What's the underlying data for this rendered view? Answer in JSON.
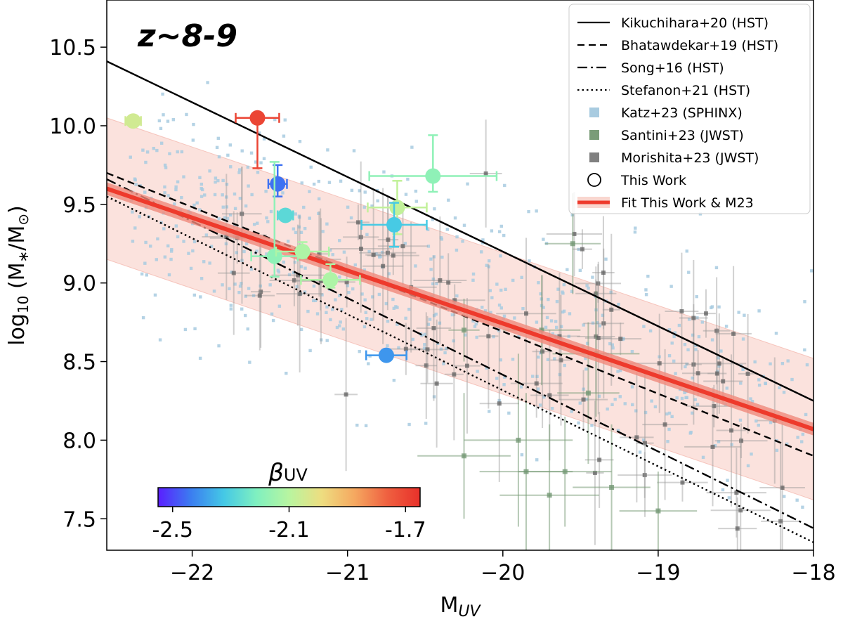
{
  "chart_data": {
    "type": "scatter",
    "annotation": "z~8-9",
    "xlabel_main": "M",
    "xlabel_sub": "UV",
    "ylabel_pre": "log",
    "ylabel_sub": "10",
    "ylabel_post": " (M",
    "ylabel_star": "∗",
    "ylabel_mid": "/M",
    "ylabel_sun": "⊙",
    "ylabel_end": ")",
    "xlim": [
      -22.55,
      -18.0
    ],
    "ylim": [
      7.3,
      10.8
    ],
    "xticks": [
      -22,
      -21,
      -20,
      -19,
      -18
    ],
    "xtick_labels": [
      "−22",
      "−21",
      "−20",
      "−19",
      "−18"
    ],
    "yticks": [
      7.5,
      8.0,
      8.5,
      9.0,
      9.5,
      10.0,
      10.5
    ],
    "ytick_labels": [
      "7.5",
      "8.0",
      "8.5",
      "9.0",
      "9.5",
      "10.0",
      "10.5"
    ],
    "colorbar": {
      "label_main": "β",
      "label_sub": "UV",
      "range": [
        -2.55,
        -1.65
      ],
      "ticks": [
        -2.5,
        -2.1,
        -1.7
      ],
      "tick_labels": [
        "-2.5",
        "-2.1",
        "-1.7"
      ],
      "colormap": [
        "#5a1eff",
        "#3b7df0",
        "#44c8e6",
        "#7ff0c0",
        "#b8f5a0",
        "#eedd80",
        "#f5a860",
        "#ef6040",
        "#e8302a"
      ]
    },
    "legend": [
      {
        "label": "Kikuchihara+20 (HST)",
        "kind": "line",
        "dash": "solid"
      },
      {
        "label": "Bhatawdekar+19 (HST)",
        "kind": "line",
        "dash": "dashed"
      },
      {
        "label": "Song+16 (HST)",
        "kind": "line",
        "dash": "dashdot"
      },
      {
        "label": "Stefanon+21 (HST)",
        "kind": "line",
        "dash": "dotted"
      },
      {
        "label": "Katz+23 (SPHINX)",
        "kind": "square",
        "color": "#a8cbe0"
      },
      {
        "label": "Santini+23 (JWST)",
        "kind": "square",
        "color": "#7a9c78"
      },
      {
        "label": "Morishita+23 (JWST)",
        "kind": "square",
        "color": "#808080"
      },
      {
        "label": "This Work",
        "kind": "circle"
      },
      {
        "label": "Fit This Work & M23",
        "kind": "fit",
        "color": "#ee3a2c"
      }
    ],
    "lines": [
      {
        "name": "Kikuchihara+20 (HST)",
        "dash": "solid",
        "x": [
          -22.55,
          -18.0
        ],
        "y": [
          10.41,
          8.25
        ]
      },
      {
        "name": "Bhatawdekar+19 (HST)",
        "dash": "dashed",
        "x": [
          -22.55,
          -18.0
        ],
        "y": [
          9.7,
          7.9
        ]
      },
      {
        "name": "Song+16 (HST)",
        "dash": "dashdot",
        "x": [
          -22.55,
          -18.0
        ],
        "y": [
          9.66,
          7.44
        ]
      },
      {
        "name": "Stefanon+21 (HST)",
        "dash": "dotted",
        "x": [
          -22.55,
          -18.0
        ],
        "y": [
          9.55,
          7.35
        ]
      }
    ],
    "fit": {
      "x": [
        -22.55,
        -18.0
      ],
      "y": [
        9.6,
        8.07
      ],
      "inner_halfwidth": 0.04,
      "band_upper": [
        10.05,
        8.52
      ],
      "band_lower": [
        9.15,
        7.62
      ],
      "color": "#ee3a2c",
      "band_color": "#f9d6cf"
    },
    "this_work": [
      {
        "x": -21.58,
        "y": 10.05,
        "xerr": 0.14,
        "yerr_lo": 0.32,
        "yerr_hi": 0.0,
        "beta": -1.7
      },
      {
        "x": -22.38,
        "y": 10.03,
        "xerr": 0.05,
        "yerr_lo": 0.02,
        "yerr_hi": 0.02,
        "beta": -2.05
      },
      {
        "x": -21.45,
        "y": 9.63,
        "xerr": 0.06,
        "yerr_lo": 0.08,
        "yerr_hi": 0.12,
        "beta": -2.45
      },
      {
        "x": -21.4,
        "y": 9.43,
        "xerr": 0.05,
        "yerr_lo": 0.03,
        "yerr_hi": 0.03,
        "beta": -2.28
      },
      {
        "x": -21.47,
        "y": 9.17,
        "xerr": 0.15,
        "yerr_lo": 0.13,
        "yerr_hi": 0.6,
        "beta": -2.18
      },
      {
        "x": -21.29,
        "y": 9.2,
        "xerr": 0.17,
        "yerr_lo": 0.04,
        "yerr_hi": 0.06,
        "beta": -2.12
      },
      {
        "x": -21.11,
        "y": 9.02,
        "xerr": 0.19,
        "yerr_lo": 0.05,
        "yerr_hi": 0.1,
        "beta": -2.12
      },
      {
        "x": -20.68,
        "y": 9.48,
        "xerr": 0.19,
        "yerr_lo": 0.17,
        "yerr_hi": 0.17,
        "beta": -2.08
      },
      {
        "x": -20.45,
        "y": 9.68,
        "xerr": 0.41,
        "yerr_lo": 0.1,
        "yerr_hi": 0.26,
        "beta": -2.18
      },
      {
        "x": -20.7,
        "y": 9.37,
        "xerr": 0.21,
        "yerr_lo": 0.14,
        "yerr_hi": 0.14,
        "beta": -2.32
      },
      {
        "x": -20.75,
        "y": 8.54,
        "xerr": 0.13,
        "yerr_lo": 0.02,
        "yerr_hi": 0.02,
        "beta": -2.4
      }
    ],
    "santini": [
      {
        "x": -19.55,
        "y": 9.25,
        "xerr": 0.18,
        "yerr": 0.32
      },
      {
        "x": -19.4,
        "y": 8.55,
        "xerr": 0.28,
        "yerr": 0.4
      },
      {
        "x": -19.9,
        "y": 8.0,
        "xerr": 0.35,
        "yerr": 0.55
      },
      {
        "x": -19.6,
        "y": 7.8,
        "xerr": 0.3,
        "yerr": 0.35
      },
      {
        "x": -19.7,
        "y": 7.65,
        "xerr": 0.32,
        "yerr": 0.45
      },
      {
        "x": -19.3,
        "y": 7.7,
        "xerr": 0.25,
        "yerr": 0.4
      },
      {
        "x": -19.0,
        "y": 7.55,
        "xerr": 0.25,
        "yerr": 0.25
      },
      {
        "x": -19.85,
        "y": 7.8,
        "xerr": 0.3,
        "yerr": 0.5
      },
      {
        "x": -20.25,
        "y": 7.9,
        "xerr": 0.3,
        "yerr": 0.4
      },
      {
        "x": -19.45,
        "y": 8.3,
        "xerr": 0.2,
        "yerr": 0.45
      },
      {
        "x": -19.75,
        "y": 8.7,
        "xerr": 0.25,
        "yerr": 0.35
      },
      {
        "x": -20.25,
        "y": 8.7,
        "xerr": 0.1,
        "yerr": 0.2
      }
    ]
  }
}
